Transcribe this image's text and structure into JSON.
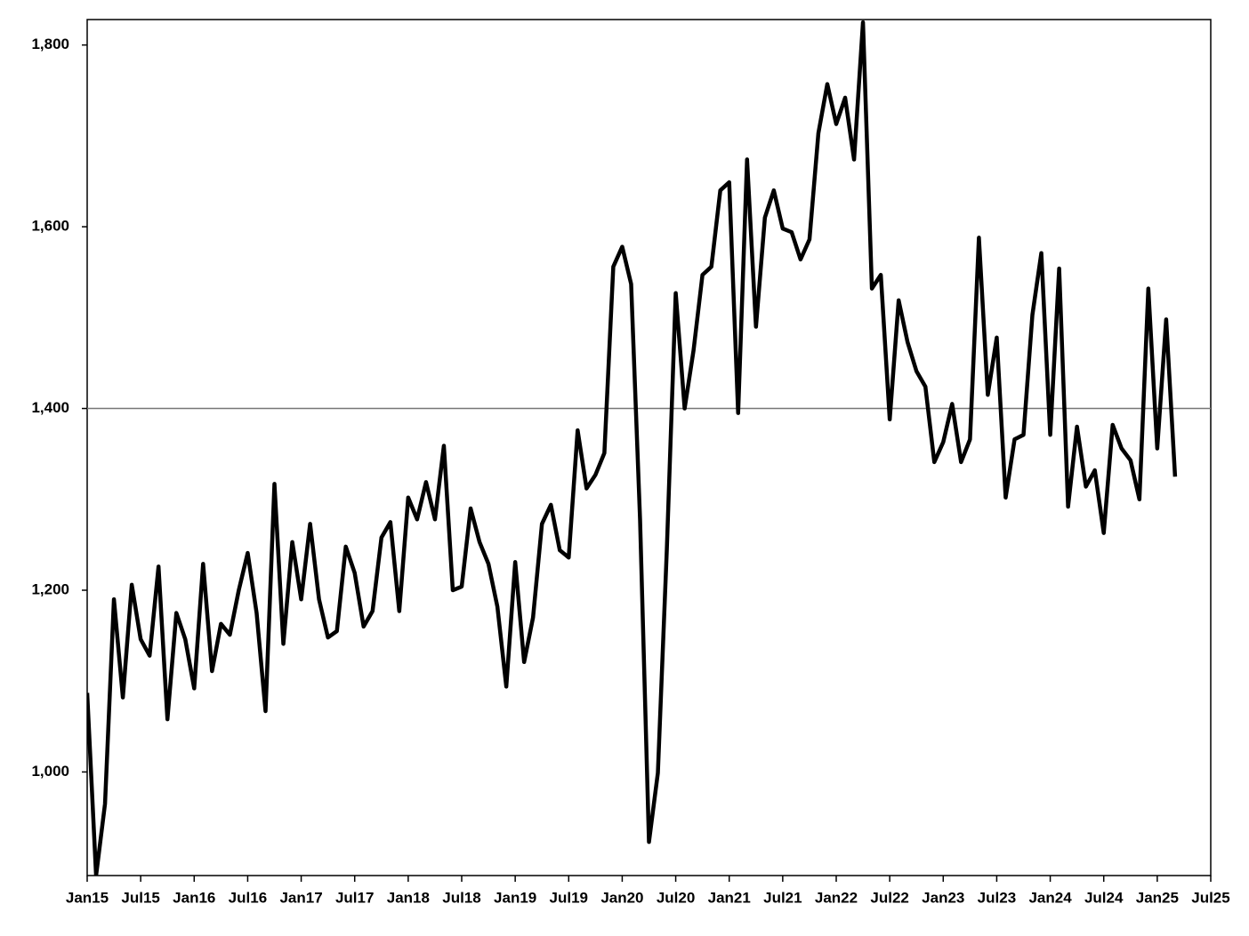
{
  "chart_data": {
    "type": "line",
    "x": [
      "2015-01",
      "2015-02",
      "2015-03",
      "2015-04",
      "2015-05",
      "2015-06",
      "2015-07",
      "2015-08",
      "2015-09",
      "2015-10",
      "2015-11",
      "2015-12",
      "2016-01",
      "2016-02",
      "2016-03",
      "2016-04",
      "2016-05",
      "2016-06",
      "2016-07",
      "2016-08",
      "2016-09",
      "2016-10",
      "2016-11",
      "2016-12",
      "2017-01",
      "2017-02",
      "2017-03",
      "2017-04",
      "2017-05",
      "2017-06",
      "2017-07",
      "2017-08",
      "2017-09",
      "2017-10",
      "2017-11",
      "2017-12",
      "2018-01",
      "2018-02",
      "2018-03",
      "2018-04",
      "2018-05",
      "2018-06",
      "2018-07",
      "2018-08",
      "2018-09",
      "2018-10",
      "2018-11",
      "2018-12",
      "2019-01",
      "2019-02",
      "2019-03",
      "2019-04",
      "2019-05",
      "2019-06",
      "2019-07",
      "2019-08",
      "2019-09",
      "2019-10",
      "2019-11",
      "2019-12",
      "2020-01",
      "2020-02",
      "2020-03",
      "2020-04",
      "2020-05",
      "2020-06",
      "2020-07",
      "2020-08",
      "2020-09",
      "2020-10",
      "2020-11",
      "2020-12",
      "2021-01",
      "2021-02",
      "2021-03",
      "2021-04",
      "2021-05",
      "2021-06",
      "2021-07",
      "2021-08",
      "2021-09",
      "2021-10",
      "2021-11",
      "2021-12",
      "2022-01",
      "2022-02",
      "2022-03",
      "2022-04",
      "2022-05",
      "2022-06",
      "2022-07",
      "2022-08",
      "2022-09",
      "2022-10",
      "2022-11",
      "2022-12",
      "2023-01",
      "2023-02",
      "2023-03",
      "2023-04",
      "2023-05",
      "2023-06",
      "2023-07",
      "2023-08",
      "2023-09",
      "2023-10",
      "2023-11",
      "2023-12",
      "2024-01",
      "2024-02",
      "2024-03",
      "2024-04",
      "2024-05",
      "2024-06",
      "2024-07",
      "2024-08",
      "2024-09",
      "2024-10",
      "2024-11",
      "2024-12",
      "2025-01",
      "2025-02",
      "2025-03"
    ],
    "values": [
      1087,
      886,
      965,
      1190,
      1082,
      1206,
      1146,
      1128,
      1226,
      1058,
      1175,
      1146,
      1092,
      1229,
      1111,
      1163,
      1151,
      1200,
      1241,
      1175,
      1067,
      1317,
      1141,
      1253,
      1190,
      1273,
      1190,
      1148,
      1155,
      1248,
      1219,
      1160,
      1177,
      1258,
      1275,
      1177,
      1302,
      1278,
      1319,
      1278,
      1359,
      1200,
      1204,
      1290,
      1253,
      1229,
      1182,
      1094,
      1231,
      1121,
      1170,
      1273,
      1294,
      1244,
      1236,
      1376,
      1312,
      1327,
      1351,
      1556,
      1578,
      1537,
      1278,
      923,
      999,
      1244,
      1527,
      1400,
      1464,
      1547,
      1556,
      1640,
      1649,
      1395,
      1674,
      1490,
      1610,
      1640,
      1598,
      1594,
      1564,
      1586,
      1703,
      1757,
      1713,
      1742,
      1674,
      1825,
      1532,
      1547,
      1388,
      1519,
      1473,
      1441,
      1424,
      1341,
      1363,
      1405,
      1341,
      1366,
      1588,
      1415,
      1478,
      1302,
      1366,
      1371,
      1503,
      1571,
      1371,
      1554,
      1292,
      1380,
      1314,
      1332,
      1263,
      1382,
      1356,
      1343,
      1300,
      1532,
      1356,
      1498,
      1325
    ],
    "color": "#000000",
    "xlim": [
      "2015-01",
      "2025-07"
    ],
    "xticks": [
      {
        "value": "2015-01",
        "label": "Jan15"
      },
      {
        "value": "2015-07",
        "label": "Jul15"
      },
      {
        "value": "2016-01",
        "label": "Jan16"
      },
      {
        "value": "2016-07",
        "label": "Jul16"
      },
      {
        "value": "2017-01",
        "label": "Jan17"
      },
      {
        "value": "2017-07",
        "label": "Jul17"
      },
      {
        "value": "2018-01",
        "label": "Jan18"
      },
      {
        "value": "2018-07",
        "label": "Jul18"
      },
      {
        "value": "2019-01",
        "label": "Jan19"
      },
      {
        "value": "2019-07",
        "label": "Jul19"
      },
      {
        "value": "2020-01",
        "label": "Jan20"
      },
      {
        "value": "2020-07",
        "label": "Jul20"
      },
      {
        "value": "2021-01",
        "label": "Jan21"
      },
      {
        "value": "2021-07",
        "label": "Jul21"
      },
      {
        "value": "2022-01",
        "label": "Jan22"
      },
      {
        "value": "2022-07",
        "label": "Jul22"
      },
      {
        "value": "2023-01",
        "label": "Jan23"
      },
      {
        "value": "2023-07",
        "label": "Jul23"
      },
      {
        "value": "2024-01",
        "label": "Jan24"
      },
      {
        "value": "2024-07",
        "label": "Jul24"
      },
      {
        "value": "2025-01",
        "label": "Jan25"
      },
      {
        "value": "2025-07",
        "label": "Jul25"
      }
    ],
    "ylim": [
      886,
      1828
    ],
    "yticks": [
      {
        "value": 1000,
        "label": "1,000"
      },
      {
        "value": 1200,
        "label": "1,200"
      },
      {
        "value": 1400,
        "label": "1,400"
      },
      {
        "value": 1600,
        "label": "1,600"
      },
      {
        "value": 1800,
        "label": "1,800"
      }
    ],
    "reference_line": 1400,
    "grid": false
  }
}
